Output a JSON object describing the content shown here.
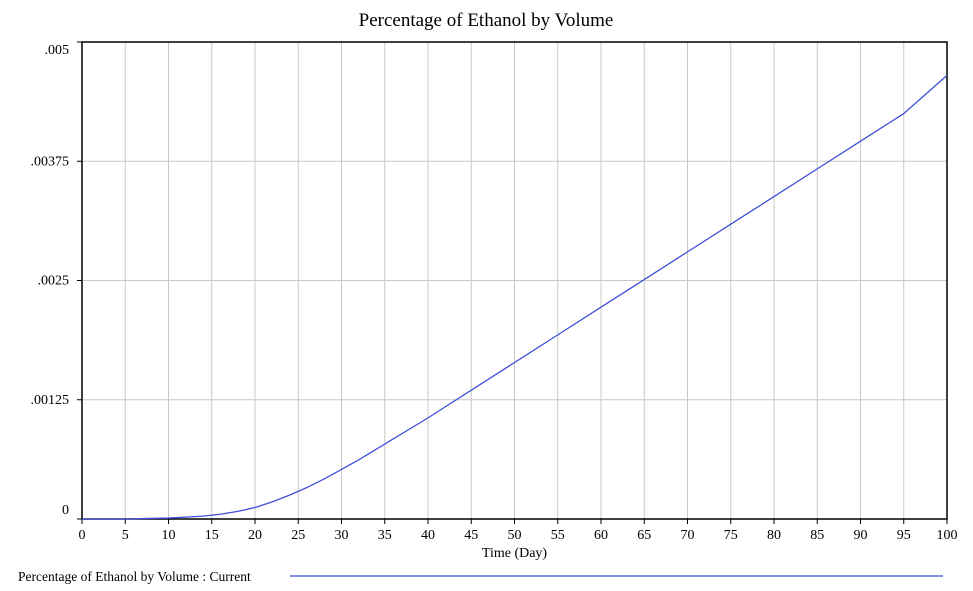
{
  "chart_data": {
    "type": "line",
    "title": "Percentage of Ethanol by Volume",
    "xlabel": "Time (Day)",
    "ylabel": "",
    "xlim": [
      0,
      100
    ],
    "ylim": [
      0,
      0.005
    ],
    "x_ticks": [
      "0",
      "5",
      "10",
      "15",
      "20",
      "25",
      "30",
      "35",
      "40",
      "45",
      "50",
      "55",
      "60",
      "65",
      "70",
      "75",
      "80",
      "85",
      "90",
      "95",
      "100"
    ],
    "y_ticks": [
      {
        "value": 0,
        "label": "0"
      },
      {
        "value": 0.00125,
        "label": ".00125"
      },
      {
        "value": 0.0025,
        "label": ".0025"
      },
      {
        "value": 0.00375,
        "label": ".00375"
      },
      {
        "value": 0.005,
        "label": ".005"
      }
    ],
    "grid": true,
    "legend_position": "bottom",
    "series": [
      {
        "name": "Percentage of Ethanol by Volume : Current",
        "color": "#3f4fd8",
        "x": [
          0,
          5,
          10,
          12,
          14,
          16,
          18,
          20,
          22,
          24,
          26,
          28,
          30,
          32,
          34,
          36,
          38,
          40,
          45,
          50,
          55,
          60,
          65,
          70,
          75,
          80,
          85,
          90,
          95,
          100
        ],
        "y": [
          0,
          0,
          1e-05,
          2e-05,
          3e-05,
          5e-05,
          8e-05,
          0.00012,
          0.00018,
          0.00025,
          0.00033,
          0.00042,
          0.00052,
          0.00062,
          0.00073,
          0.00084,
          0.00095,
          0.00106,
          0.00135,
          0.00164,
          0.00193,
          0.00222,
          0.00251,
          0.0028,
          0.00309,
          0.00338,
          0.00367,
          0.00396,
          0.00425,
          0.00465
        ]
      }
    ]
  }
}
